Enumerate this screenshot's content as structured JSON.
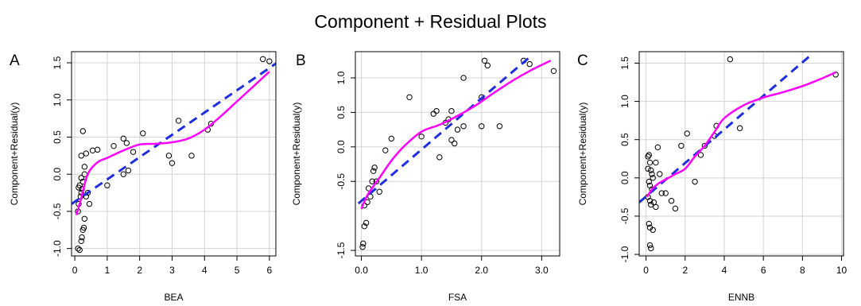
{
  "title": "Component + Residual Plots",
  "chart_data": [
    {
      "type": "scatter",
      "panel_label": "A",
      "xlabel": "BEA",
      "ylabel": "Component+Residual(y)",
      "xlim": [
        -0.1,
        6.2
      ],
      "ylim": [
        -1.1,
        1.65
      ],
      "xticks": [
        0,
        1,
        2,
        3,
        4,
        5,
        6
      ],
      "xtick_labels": [
        "0",
        "1",
        "2",
        "3",
        "4",
        "5",
        "6"
      ],
      "yticks": [
        -1.0,
        -0.5,
        0.0,
        0.5,
        1.0,
        1.5
      ],
      "ytick_labels": [
        "-1.0",
        "-0.5",
        "0.0",
        "0.5",
        "1.0",
        "1.5"
      ],
      "grid": true,
      "points": [
        [
          0.1,
          -1.0
        ],
        [
          0.15,
          -1.02
        ],
        [
          0.2,
          -0.9
        ],
        [
          0.22,
          -0.85
        ],
        [
          0.25,
          -0.75
        ],
        [
          0.28,
          -0.72
        ],
        [
          0.3,
          -0.6
        ],
        [
          0.1,
          -0.5
        ],
        [
          0.12,
          -0.4
        ],
        [
          0.18,
          -0.3
        ],
        [
          0.2,
          -0.25
        ],
        [
          0.22,
          -0.2
        ],
        [
          0.12,
          -0.18
        ],
        [
          0.15,
          -0.15
        ],
        [
          0.25,
          -0.1
        ],
        [
          0.2,
          -0.05
        ],
        [
          0.3,
          0.0
        ],
        [
          0.35,
          -0.3
        ],
        [
          0.4,
          -0.25
        ],
        [
          0.45,
          -0.4
        ],
        [
          0.3,
          0.1
        ],
        [
          0.2,
          0.25
        ],
        [
          0.25,
          0.58
        ],
        [
          0.35,
          0.28
        ],
        [
          0.55,
          0.32
        ],
        [
          0.7,
          0.33
        ],
        [
          1.0,
          -0.15
        ],
        [
          1.2,
          0.38
        ],
        [
          1.5,
          0.48
        ],
        [
          1.6,
          0.42
        ],
        [
          1.5,
          0.0
        ],
        [
          1.65,
          0.05
        ],
        [
          1.8,
          0.3
        ],
        [
          2.1,
          0.55
        ],
        [
          2.9,
          0.25
        ],
        [
          3.0,
          0.15
        ],
        [
          3.2,
          0.72
        ],
        [
          3.6,
          0.25
        ],
        [
          4.1,
          0.6
        ],
        [
          4.2,
          0.68
        ],
        [
          5.8,
          1.55
        ],
        [
          6.0,
          1.52
        ]
      ],
      "series": [
        {
          "style": "dashed",
          "color": "#1f2fe0",
          "x": [
            -0.1,
            6.2
          ],
          "y": [
            -0.4,
            1.49
          ]
        },
        {
          "style": "smooth",
          "color": "#ff00ff",
          "x": [
            0.05,
            0.2,
            0.4,
            0.7,
            1.0,
            1.5,
            2.0,
            2.5,
            3.0,
            3.5,
            4.0,
            4.5,
            5.0,
            5.5,
            6.0
          ],
          "y": [
            -0.55,
            -0.32,
            0.0,
            0.16,
            0.22,
            0.32,
            0.4,
            0.41,
            0.43,
            0.48,
            0.6,
            0.78,
            0.98,
            1.18,
            1.38
          ]
        }
      ]
    },
    {
      "type": "scatter",
      "panel_label": "B",
      "xlabel": "FSA",
      "ylabel": "Component+Residual(y)",
      "xlim": [
        -0.1,
        3.3
      ],
      "ylim": [
        -1.58,
        1.38
      ],
      "xticks": [
        0.0,
        1.0,
        2.0,
        3.0
      ],
      "xtick_labels": [
        "0.0",
        "1.0",
        "2.0",
        "3.0"
      ],
      "yticks": [
        -1.5,
        -0.5,
        0.0,
        0.5,
        1.0
      ],
      "ytick_labels": [
        "-1.5",
        "-0.5",
        "0.0",
        "0.5",
        "1.0"
      ],
      "grid": true,
      "points": [
        [
          0.02,
          -1.45
        ],
        [
          0.03,
          -1.4
        ],
        [
          0.05,
          -1.15
        ],
        [
          0.08,
          -1.1
        ],
        [
          0.05,
          -0.85
        ],
        [
          0.1,
          -0.8
        ],
        [
          0.15,
          -0.72
        ],
        [
          0.12,
          -0.6
        ],
        [
          0.18,
          -0.5
        ],
        [
          0.2,
          -0.35
        ],
        [
          0.22,
          -0.3
        ],
        [
          0.25,
          -0.5
        ],
        [
          0.3,
          -0.65
        ],
        [
          0.4,
          -0.05
        ],
        [
          0.5,
          0.12
        ],
        [
          0.8,
          0.72
        ],
        [
          1.0,
          0.15
        ],
        [
          1.2,
          0.48
        ],
        [
          1.25,
          0.52
        ],
        [
          1.3,
          -0.15
        ],
        [
          1.4,
          0.35
        ],
        [
          1.45,
          0.4
        ],
        [
          1.5,
          0.1
        ],
        [
          1.55,
          0.05
        ],
        [
          1.5,
          0.52
        ],
        [
          1.6,
          0.25
        ],
        [
          1.7,
          0.3
        ],
        [
          1.7,
          1.0
        ],
        [
          2.0,
          0.3
        ],
        [
          2.0,
          0.72
        ],
        [
          2.05,
          1.25
        ],
        [
          2.1,
          1.18
        ],
        [
          2.3,
          0.3
        ],
        [
          2.7,
          1.25
        ],
        [
          2.8,
          1.2
        ],
        [
          3.2,
          1.1
        ]
      ],
      "series": [
        {
          "style": "dashed",
          "color": "#1f2fe0",
          "x": [
            -0.05,
            2.8
          ],
          "y": [
            -0.82,
            1.3
          ]
        },
        {
          "style": "smooth",
          "color": "#ff00ff",
          "x": [
            0.0,
            0.1,
            0.3,
            0.5,
            0.7,
            1.0,
            1.3,
            1.6,
            1.9,
            2.2,
            2.5,
            2.8,
            3.15
          ],
          "y": [
            -0.9,
            -0.7,
            -0.45,
            -0.2,
            0.0,
            0.22,
            0.32,
            0.45,
            0.6,
            0.78,
            0.95,
            1.1,
            1.25
          ]
        }
      ]
    },
    {
      "type": "scatter",
      "panel_label": "C",
      "xlabel": "ENNB",
      "ylabel": "Component+Residual(y)",
      "xlim": [
        -0.35,
        10.1
      ],
      "ylim": [
        -1.02,
        1.65
      ],
      "xticks": [
        0,
        2,
        4,
        6,
        8,
        10
      ],
      "xtick_labels": [
        "0",
        "2",
        "4",
        "6",
        "8",
        "10"
      ],
      "yticks": [
        -1.0,
        -0.5,
        0.0,
        0.5,
        1.0,
        1.5
      ],
      "ytick_labels": [
        "-1.0",
        "-0.5",
        "0.0",
        "0.5",
        "1.0",
        "1.5"
      ],
      "grid": true,
      "points": [
        [
          0.1,
          0.28
        ],
        [
          0.15,
          0.3
        ],
        [
          0.2,
          0.2
        ],
        [
          0.1,
          0.12
        ],
        [
          0.25,
          0.1
        ],
        [
          0.3,
          0.05
        ],
        [
          0.35,
          0.0
        ],
        [
          0.15,
          -0.05
        ],
        [
          0.2,
          -0.1
        ],
        [
          0.3,
          -0.15
        ],
        [
          0.1,
          -0.25
        ],
        [
          0.2,
          -0.3
        ],
        [
          0.25,
          -0.35
        ],
        [
          0.4,
          -0.32
        ],
        [
          0.5,
          -0.38
        ],
        [
          0.15,
          -0.6
        ],
        [
          0.2,
          -0.65
        ],
        [
          0.35,
          -0.68
        ],
        [
          0.2,
          -0.88
        ],
        [
          0.25,
          -0.92
        ],
        [
          0.6,
          0.4
        ],
        [
          0.5,
          0.2
        ],
        [
          0.7,
          0.05
        ],
        [
          0.8,
          -0.2
        ],
        [
          1.0,
          -0.2
        ],
        [
          1.3,
          -0.3
        ],
        [
          1.5,
          -0.4
        ],
        [
          1.8,
          0.42
        ],
        [
          2.1,
          0.58
        ],
        [
          2.5,
          -0.05
        ],
        [
          2.8,
          0.3
        ],
        [
          3.0,
          0.42
        ],
        [
          3.5,
          0.55
        ],
        [
          3.6,
          0.68
        ],
        [
          4.3,
          1.55
        ],
        [
          4.8,
          0.65
        ],
        [
          9.7,
          1.35
        ]
      ],
      "series": [
        {
          "style": "dashed",
          "color": "#1f2fe0",
          "x": [
            -0.35,
            8.5
          ],
          "y": [
            -0.32,
            1.62
          ]
        },
        {
          "style": "smooth",
          "color": "#ff00ff",
          "x": [
            0.05,
            0.3,
            0.6,
            1.0,
            1.5,
            2.0,
            2.5,
            3.0,
            3.5,
            4.0,
            5.0,
            6.0,
            7.0,
            8.0,
            9.0,
            9.7
          ],
          "y": [
            -0.25,
            -0.15,
            -0.08,
            -0.02,
            0.05,
            0.12,
            0.28,
            0.42,
            0.6,
            0.78,
            0.95,
            1.05,
            1.12,
            1.2,
            1.3,
            1.38
          ]
        }
      ]
    }
  ]
}
